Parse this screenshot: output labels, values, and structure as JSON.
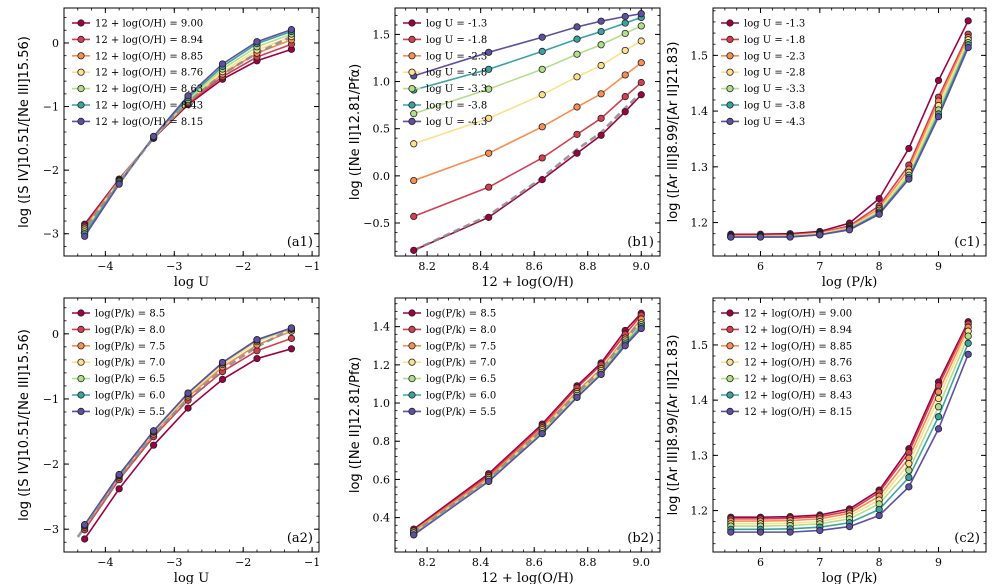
{
  "palette7": [
    "#9e0142",
    "#d53e4f",
    "#f98e52",
    "#fee08b",
    "#b2df8a",
    "#3aa3a0",
    "#5e4fa2"
  ],
  "fit_color": "#888888",
  "chart_data": [
    {
      "id": "a1",
      "type": "line",
      "tag": "(a1)",
      "xlabel": "log U",
      "ylabel": "log ([S IV]10.51/[Ne III]15.56)",
      "xlim": [
        -4.6,
        -0.9
      ],
      "ylim": [
        -3.35,
        0.55
      ],
      "xticks": [
        -4,
        -3,
        -2,
        -1
      ],
      "yticks": [
        -3,
        -2,
        -1,
        0
      ],
      "legend_loc": "upper-left",
      "x": [
        -4.3,
        -3.8,
        -3.3,
        -2.8,
        -2.3,
        -1.8,
        -1.3
      ],
      "series": [
        {
          "name": "12 + log(O/H) = 9.00",
          "values": [
            -2.85,
            -2.14,
            -1.5,
            -0.97,
            -0.57,
            -0.28,
            -0.1
          ]
        },
        {
          "name": "12 + log(O/H) = 8.94",
          "values": [
            -2.88,
            -2.15,
            -1.49,
            -0.95,
            -0.53,
            -0.22,
            -0.02
          ]
        },
        {
          "name": "12 + log(O/H) = 8.85",
          "values": [
            -2.91,
            -2.16,
            -1.49,
            -0.93,
            -0.49,
            -0.16,
            0.05
          ]
        },
        {
          "name": "12 + log(O/H) = 8.76",
          "values": [
            -2.94,
            -2.17,
            -1.48,
            -0.91,
            -0.45,
            -0.11,
            0.1
          ]
        },
        {
          "name": "12 + log(O/H) = 8.63",
          "values": [
            -2.97,
            -2.18,
            -1.48,
            -0.89,
            -0.41,
            -0.06,
            0.14
          ]
        },
        {
          "name": "12 + log(O/H) = 8.43",
          "values": [
            -3.0,
            -2.2,
            -1.47,
            -0.86,
            -0.37,
            -0.01,
            0.18
          ]
        },
        {
          "name": "12 + log(O/H) = 8.15",
          "values": [
            -3.04,
            -2.22,
            -1.47,
            -0.83,
            -0.33,
            0.02,
            0.21
          ]
        }
      ],
      "fit": {
        "x": [
          -4.35,
          -3.8,
          -3.3,
          -2.8,
          -2.3,
          -1.8,
          -1.3
        ],
        "y": [
          -3.0,
          -2.19,
          -1.49,
          -0.93,
          -0.49,
          -0.16,
          0.1
        ]
      }
    },
    {
      "id": "b1",
      "type": "line",
      "tag": "(b1)",
      "xlabel": "12 + log(O/H)",
      "ylabel": "log ([Ne II]12.81/Pfα)",
      "xlim": [
        8.08,
        9.07
      ],
      "ylim": [
        -0.85,
        1.78
      ],
      "xticks": [
        8.2,
        8.4,
        8.6,
        8.8,
        9.0
      ],
      "yticks": [
        -0.5,
        0.0,
        0.5,
        1.0,
        1.5
      ],
      "legend_loc": "upper-left",
      "x": [
        8.15,
        8.43,
        8.63,
        8.76,
        8.85,
        8.94,
        9.0
      ],
      "series": [
        {
          "name": "log U = -1.3",
          "values": [
            -0.79,
            -0.44,
            -0.04,
            0.24,
            0.43,
            0.68,
            0.86
          ]
        },
        {
          "name": "log U = -1.8",
          "values": [
            -0.43,
            -0.12,
            0.19,
            0.44,
            0.61,
            0.84,
            0.99
          ]
        },
        {
          "name": "log U = -2.3",
          "values": [
            -0.05,
            0.24,
            0.52,
            0.73,
            0.87,
            1.07,
            1.2
          ]
        },
        {
          "name": "log U = -2.8",
          "values": [
            0.34,
            0.61,
            0.86,
            1.05,
            1.17,
            1.33,
            1.43
          ]
        },
        {
          "name": "log U = -3.3",
          "values": [
            0.66,
            0.92,
            1.13,
            1.29,
            1.39,
            1.51,
            1.59
          ]
        },
        {
          "name": "log U = -3.8",
          "values": [
            0.91,
            1.13,
            1.32,
            1.45,
            1.53,
            1.62,
            1.68
          ]
        },
        {
          "name": "log U = -4.3",
          "values": [
            1.06,
            1.31,
            1.47,
            1.58,
            1.64,
            1.69,
            1.72
          ]
        }
      ],
      "fit": {
        "x": [
          8.15,
          8.43,
          8.63,
          8.76,
          8.85,
          8.94,
          9.0
        ],
        "y": [
          -0.79,
          -0.42,
          -0.02,
          0.28,
          0.46,
          0.72,
          0.88
        ]
      }
    },
    {
      "id": "c1",
      "type": "line",
      "tag": "(c1)",
      "xlabel": "log (P/k)",
      "ylabel": "log ([Ar III]8.99/[Ar II]21.83)",
      "xlim": [
        5.2,
        9.8
      ],
      "ylim": [
        1.14,
        1.585
      ],
      "xticks": [
        6,
        7,
        8,
        9
      ],
      "yticks": [
        1.2,
        1.3,
        1.4,
        1.5
      ],
      "legend_loc": "upper-left",
      "x": [
        5.5,
        6.0,
        6.5,
        7.0,
        7.5,
        8.0,
        8.5,
        9.0,
        9.5
      ],
      "series": [
        {
          "name": "log U = -1.3",
          "values": [
            1.179,
            1.179,
            1.18,
            1.184,
            1.199,
            1.243,
            1.333,
            1.455,
            1.562
          ]
        },
        {
          "name": "log U = -1.8",
          "values": [
            1.177,
            1.177,
            1.178,
            1.182,
            1.194,
            1.23,
            1.303,
            1.425,
            1.538
          ]
        },
        {
          "name": "log U = -2.3",
          "values": [
            1.176,
            1.176,
            1.177,
            1.181,
            1.192,
            1.225,
            1.296,
            1.418,
            1.532
          ]
        },
        {
          "name": "log U = -2.8",
          "values": [
            1.175,
            1.175,
            1.176,
            1.18,
            1.19,
            1.222,
            1.29,
            1.41,
            1.528
          ]
        },
        {
          "name": "log U = -3.3",
          "values": [
            1.174,
            1.175,
            1.175,
            1.179,
            1.189,
            1.219,
            1.285,
            1.402,
            1.523
          ]
        },
        {
          "name": "log U = -3.8",
          "values": [
            1.174,
            1.174,
            1.175,
            1.178,
            1.188,
            1.217,
            1.281,
            1.395,
            1.519
          ]
        },
        {
          "name": "log U = -4.3",
          "values": [
            1.174,
            1.174,
            1.174,
            1.178,
            1.187,
            1.215,
            1.278,
            1.39,
            1.514
          ]
        }
      ]
    },
    {
      "id": "a2",
      "type": "line",
      "tag": "(a2)",
      "xlabel": "log U",
      "ylabel": "log ([S IV]10.51/[Ne III]15.56)",
      "xlim": [
        -4.6,
        -0.9
      ],
      "ylim": [
        -3.35,
        0.55
      ],
      "xticks": [
        -4,
        -3,
        -2,
        -1
      ],
      "yticks": [
        -3,
        -2,
        -1,
        0
      ],
      "legend_loc": "upper-left",
      "x": [
        -4.3,
        -3.8,
        -3.3,
        -2.8,
        -2.3,
        -1.8,
        -1.3
      ],
      "series": [
        {
          "name": "log(P/k) = 8.5",
          "values": [
            -3.15,
            -2.38,
            -1.71,
            -1.14,
            -0.7,
            -0.38,
            -0.23
          ]
        },
        {
          "name": "log(P/k) = 8.0",
          "values": [
            -3.01,
            -2.24,
            -1.58,
            -1.02,
            -0.58,
            -0.26,
            -0.07
          ]
        },
        {
          "name": "log(P/k) = 7.5",
          "values": [
            -2.97,
            -2.2,
            -1.54,
            -0.97,
            -0.51,
            -0.17,
            0.04
          ]
        },
        {
          "name": "log(P/k) = 7.0",
          "values": [
            -2.95,
            -2.18,
            -1.51,
            -0.94,
            -0.47,
            -0.12,
            0.07
          ]
        },
        {
          "name": "log(P/k) = 6.5",
          "values": [
            -2.94,
            -2.17,
            -1.5,
            -0.92,
            -0.45,
            -0.1,
            0.08
          ]
        },
        {
          "name": "log(P/k) = 6.0",
          "values": [
            -2.94,
            -2.17,
            -1.49,
            -0.91,
            -0.44,
            -0.09,
            0.09
          ]
        },
        {
          "name": "log(P/k) = 5.5",
          "values": [
            -2.93,
            -2.16,
            -1.49,
            -0.91,
            -0.44,
            -0.09,
            0.09
          ]
        }
      ],
      "fit": {
        "x": [
          -4.4,
          -3.8,
          -3.3,
          -2.8,
          -2.3,
          -1.8,
          -1.3
        ],
        "y": [
          -3.12,
          -2.22,
          -1.55,
          -1.0,
          -0.55,
          -0.2,
          0.08
        ]
      }
    },
    {
      "id": "b2",
      "type": "line",
      "tag": "(b2)",
      "xlabel": "12 + log(O/H)",
      "ylabel": "log ([Ne II]12.81/Pfα)",
      "xlim": [
        8.08,
        9.07
      ],
      "ylim": [
        0.22,
        1.55
      ],
      "xticks": [
        8.2,
        8.4,
        8.6,
        8.8,
        9.0
      ],
      "yticks": [
        0.4,
        0.6,
        0.8,
        1.0,
        1.2,
        1.4
      ],
      "legend_loc": "upper-left",
      "x": [
        8.15,
        8.43,
        8.63,
        8.76,
        8.85,
        8.94,
        9.0
      ],
      "series": [
        {
          "name": "log(P/k) = 8.5",
          "values": [
            0.34,
            0.63,
            0.89,
            1.09,
            1.21,
            1.38,
            1.47
          ]
        },
        {
          "name": "log(P/k) = 8.0",
          "values": [
            0.33,
            0.62,
            0.88,
            1.08,
            1.2,
            1.36,
            1.46
          ]
        },
        {
          "name": "log(P/k) = 7.5",
          "values": [
            0.33,
            0.61,
            0.87,
            1.06,
            1.18,
            1.34,
            1.44
          ]
        },
        {
          "name": "log(P/k) = 7.0",
          "values": [
            0.32,
            0.6,
            0.86,
            1.05,
            1.17,
            1.33,
            1.42
          ]
        },
        {
          "name": "log(P/k) = 6.5",
          "values": [
            0.32,
            0.6,
            0.85,
            1.04,
            1.16,
            1.32,
            1.41
          ]
        },
        {
          "name": "log(P/k) = 6.0",
          "values": [
            0.31,
            0.59,
            0.84,
            1.03,
            1.15,
            1.31,
            1.4
          ]
        },
        {
          "name": "log(P/k) = 5.5",
          "values": [
            0.31,
            0.59,
            0.84,
            1.03,
            1.15,
            1.3,
            1.39
          ]
        }
      ],
      "fit": {
        "x": [
          8.15,
          8.43,
          8.63,
          8.76,
          8.85,
          8.94,
          9.0
        ],
        "y": [
          0.32,
          0.6,
          0.86,
          1.05,
          1.17,
          1.33,
          1.43
        ]
      }
    },
    {
      "id": "c2",
      "type": "line",
      "tag": "(c2)",
      "xlabel": "log (P/k)",
      "ylabel": "log ([Ar III]8.99/[Ar II]21.83)",
      "xlim": [
        5.2,
        9.8
      ],
      "ylim": [
        1.125,
        1.585
      ],
      "xticks": [
        6,
        7,
        8,
        9
      ],
      "yticks": [
        1.2,
        1.3,
        1.4,
        1.5
      ],
      "legend_loc": "upper-left",
      "x": [
        5.5,
        6.0,
        6.5,
        7.0,
        7.5,
        8.0,
        8.5,
        9.0,
        9.5
      ],
      "series": [
        {
          "name": "12 + log(O/H) = 9.00",
          "values": [
            1.188,
            1.188,
            1.189,
            1.192,
            1.203,
            1.237,
            1.312,
            1.433,
            1.542
          ]
        },
        {
          "name": "12 + log(O/H) = 8.94",
          "values": [
            1.185,
            1.185,
            1.186,
            1.189,
            1.199,
            1.233,
            1.305,
            1.426,
            1.538
          ]
        },
        {
          "name": "12 + log(O/H) = 8.85",
          "values": [
            1.181,
            1.181,
            1.182,
            1.185,
            1.195,
            1.226,
            1.295,
            1.415,
            1.532
          ]
        },
        {
          "name": "12 + log(O/H) = 8.76",
          "values": [
            1.176,
            1.176,
            1.177,
            1.18,
            1.19,
            1.219,
            1.285,
            1.403,
            1.525
          ]
        },
        {
          "name": "12 + log(O/H) = 8.63",
          "values": [
            1.172,
            1.172,
            1.173,
            1.176,
            1.185,
            1.212,
            1.273,
            1.388,
            1.516
          ]
        },
        {
          "name": "12 + log(O/H) = 8.43",
          "values": [
            1.166,
            1.166,
            1.167,
            1.17,
            1.178,
            1.202,
            1.26,
            1.37,
            1.503
          ]
        },
        {
          "name": "12 + log(O/H) = 8.15",
          "values": [
            1.161,
            1.161,
            1.161,
            1.164,
            1.171,
            1.191,
            1.243,
            1.348,
            1.483
          ]
        }
      ]
    }
  ]
}
